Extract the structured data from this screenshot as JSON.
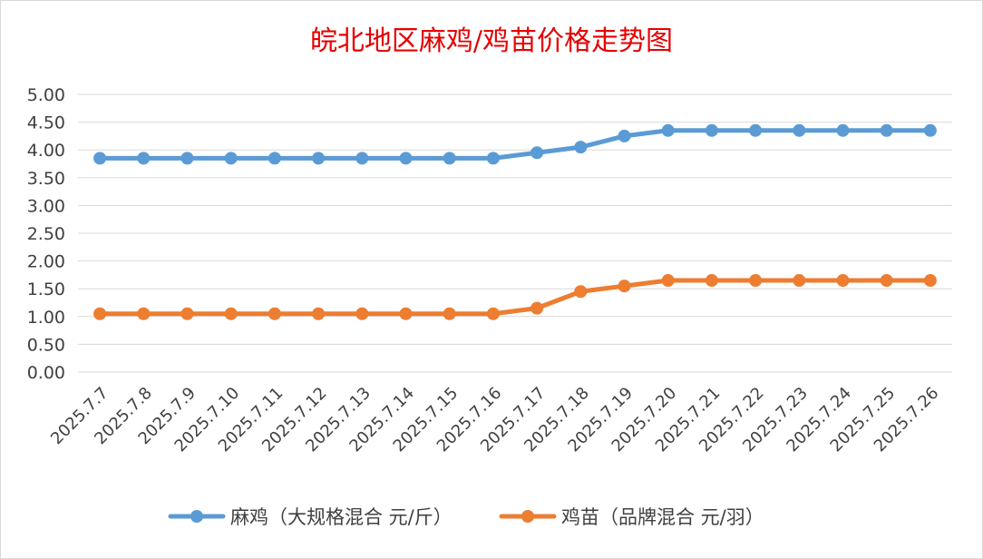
{
  "chart_data": {
    "type": "line",
    "title": "皖北地区麻鸡/鸡苗价格走势图",
    "xlabel": "",
    "ylabel": "",
    "ylim": [
      0,
      5
    ],
    "y_ticks": [
      "0.00",
      "0.50",
      "1.00",
      "1.50",
      "2.00",
      "2.50",
      "3.00",
      "3.50",
      "4.00",
      "4.50",
      "5.00"
    ],
    "grid": true,
    "legend_position": "bottom",
    "categories": [
      "2025.7.7",
      "2025.7.8",
      "2025.7.9",
      "2025.7.10",
      "2025.7.11",
      "2025.7.12",
      "2025.7.13",
      "2025.7.14",
      "2025.7.15",
      "2025.7.16",
      "2025.7.17",
      "2025.7.18",
      "2025.7.19",
      "2025.7.20",
      "2025.7.21",
      "2025.7.22",
      "2025.7.23",
      "2025.7.24",
      "2025.7.25",
      "2025.7.26"
    ],
    "series": [
      {
        "name": "麻鸡（大规格混合 元/斤）",
        "color": "#5b9bd5",
        "values": [
          3.85,
          3.85,
          3.85,
          3.85,
          3.85,
          3.85,
          3.85,
          3.85,
          3.85,
          3.85,
          3.95,
          4.05,
          4.25,
          4.35,
          4.35,
          4.35,
          4.35,
          4.35,
          4.35,
          4.35
        ]
      },
      {
        "name": "鸡苗（品牌混合 元/羽）",
        "color": "#ed7d31",
        "values": [
          1.05,
          1.05,
          1.05,
          1.05,
          1.05,
          1.05,
          1.05,
          1.05,
          1.05,
          1.05,
          1.15,
          1.45,
          1.55,
          1.65,
          1.65,
          1.65,
          1.65,
          1.65,
          1.65,
          1.65
        ]
      }
    ]
  }
}
